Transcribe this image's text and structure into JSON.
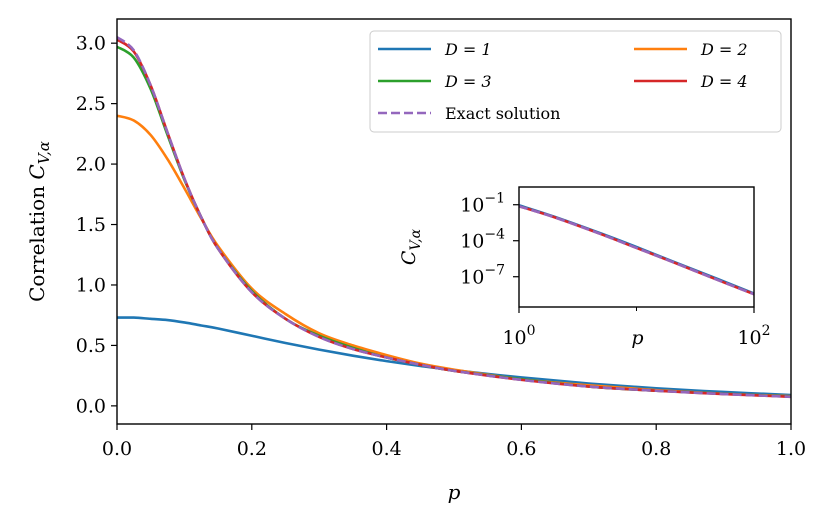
{
  "chart_data": [
    {
      "type": "line",
      "title": "",
      "xlabel": "p",
      "ylabel_main": "Correlation",
      "ylabel_sym": "C",
      "ylabel_sub": "V,α",
      "xlim": [
        0.0,
        1.0
      ],
      "ylim": [
        -0.15,
        3.2
      ],
      "xticks": [
        0.0,
        0.2,
        0.4,
        0.6,
        0.8,
        1.0
      ],
      "xtick_labels": [
        "0.0",
        "0.2",
        "0.4",
        "0.6",
        "0.8",
        "1.0"
      ],
      "yticks": [
        0.0,
        0.5,
        1.0,
        1.5,
        2.0,
        2.5,
        3.0
      ],
      "ytick_labels": [
        "0.0",
        "0.5",
        "1.0",
        "1.5",
        "2.0",
        "2.5",
        "3.0"
      ],
      "grid": false,
      "legend_position": "top-right",
      "x": [
        0.0,
        0.025,
        0.05,
        0.075,
        0.1,
        0.125,
        0.15,
        0.2,
        0.25,
        0.3,
        0.35,
        0.4,
        0.45,
        0.5,
        0.6,
        0.7,
        0.8,
        0.9,
        1.0
      ],
      "series": [
        {
          "name": "D = 1",
          "color": "#1f77b4",
          "dash": "solid",
          "values": [
            0.73,
            0.73,
            0.72,
            0.71,
            0.69,
            0.665,
            0.64,
            0.58,
            0.52,
            0.465,
            0.415,
            0.37,
            0.33,
            0.295,
            0.235,
            0.185,
            0.145,
            0.115,
            0.09
          ]
        },
        {
          "name": "D = 2",
          "color": "#ff7f0e",
          "dash": "solid",
          "values": [
            2.4,
            2.36,
            2.24,
            2.04,
            1.8,
            1.55,
            1.32,
            0.97,
            0.76,
            0.6,
            0.5,
            0.42,
            0.35,
            0.3,
            0.22,
            0.17,
            0.13,
            0.1,
            0.08
          ]
        },
        {
          "name": "D = 3",
          "color": "#2ca02c",
          "dash": "solid",
          "values": [
            2.97,
            2.88,
            2.62,
            2.24,
            1.87,
            1.56,
            1.3,
            0.95,
            0.72,
            0.58,
            0.48,
            0.4,
            0.34,
            0.29,
            0.22,
            0.16,
            0.125,
            0.1,
            0.077
          ]
        },
        {
          "name": "D = 4",
          "color": "#d62728",
          "dash": "solid",
          "values": [
            3.03,
            2.93,
            2.65,
            2.26,
            1.88,
            1.56,
            1.3,
            0.94,
            0.72,
            0.57,
            0.47,
            0.4,
            0.34,
            0.29,
            0.215,
            0.16,
            0.125,
            0.098,
            0.075
          ]
        },
        {
          "name": "Exact solution",
          "color": "#9467bd",
          "dash": "dashed",
          "values": [
            3.05,
            2.94,
            2.65,
            2.26,
            1.88,
            1.56,
            1.3,
            0.94,
            0.72,
            0.57,
            0.47,
            0.4,
            0.34,
            0.29,
            0.215,
            0.16,
            0.125,
            0.098,
            0.075
          ]
        }
      ]
    },
    {
      "type": "line",
      "title": "",
      "role": "inset",
      "xlabel": "p",
      "ylabel_sym": "C",
      "ylabel_sub": "V,α",
      "xscale": "log",
      "yscale": "log",
      "xlim": [
        1,
        100
      ],
      "ylim": [
        3e-10,
        3
      ],
      "xticks": [
        1,
        100
      ],
      "xtick_labels": [
        {
          "base": "10",
          "exp": "0"
        },
        {
          "base": "10",
          "exp": "2"
        }
      ],
      "yticks": [
        0.1,
        0.0001,
        1e-07
      ],
      "ytick_labels": [
        {
          "base": "10",
          "exp": "−1"
        },
        {
          "base": "10",
          "exp": "−4"
        },
        {
          "base": "10",
          "exp": "−7"
        }
      ],
      "x": [
        1,
        2,
        5,
        10,
        20,
        50,
        100
      ],
      "series": [
        {
          "name": "D = 1",
          "color": "#1f77b4",
          "dash": "solid",
          "values": [
            0.09,
            0.01,
            0.0004,
            3e-05,
            2e-06,
            6e-08,
            4e-09
          ]
        },
        {
          "name": "D = 4",
          "color": "#d62728",
          "dash": "solid",
          "values": [
            0.075,
            0.009,
            0.00035,
            2.5e-05,
            1.8e-06,
            5e-08,
            3.5e-09
          ]
        },
        {
          "name": "Exact solution",
          "color": "#9467bd",
          "dash": "dashed",
          "values": [
            0.075,
            0.009,
            0.00035,
            2.5e-05,
            1.8e-06,
            5e-08,
            3.5e-09
          ]
        }
      ]
    }
  ]
}
